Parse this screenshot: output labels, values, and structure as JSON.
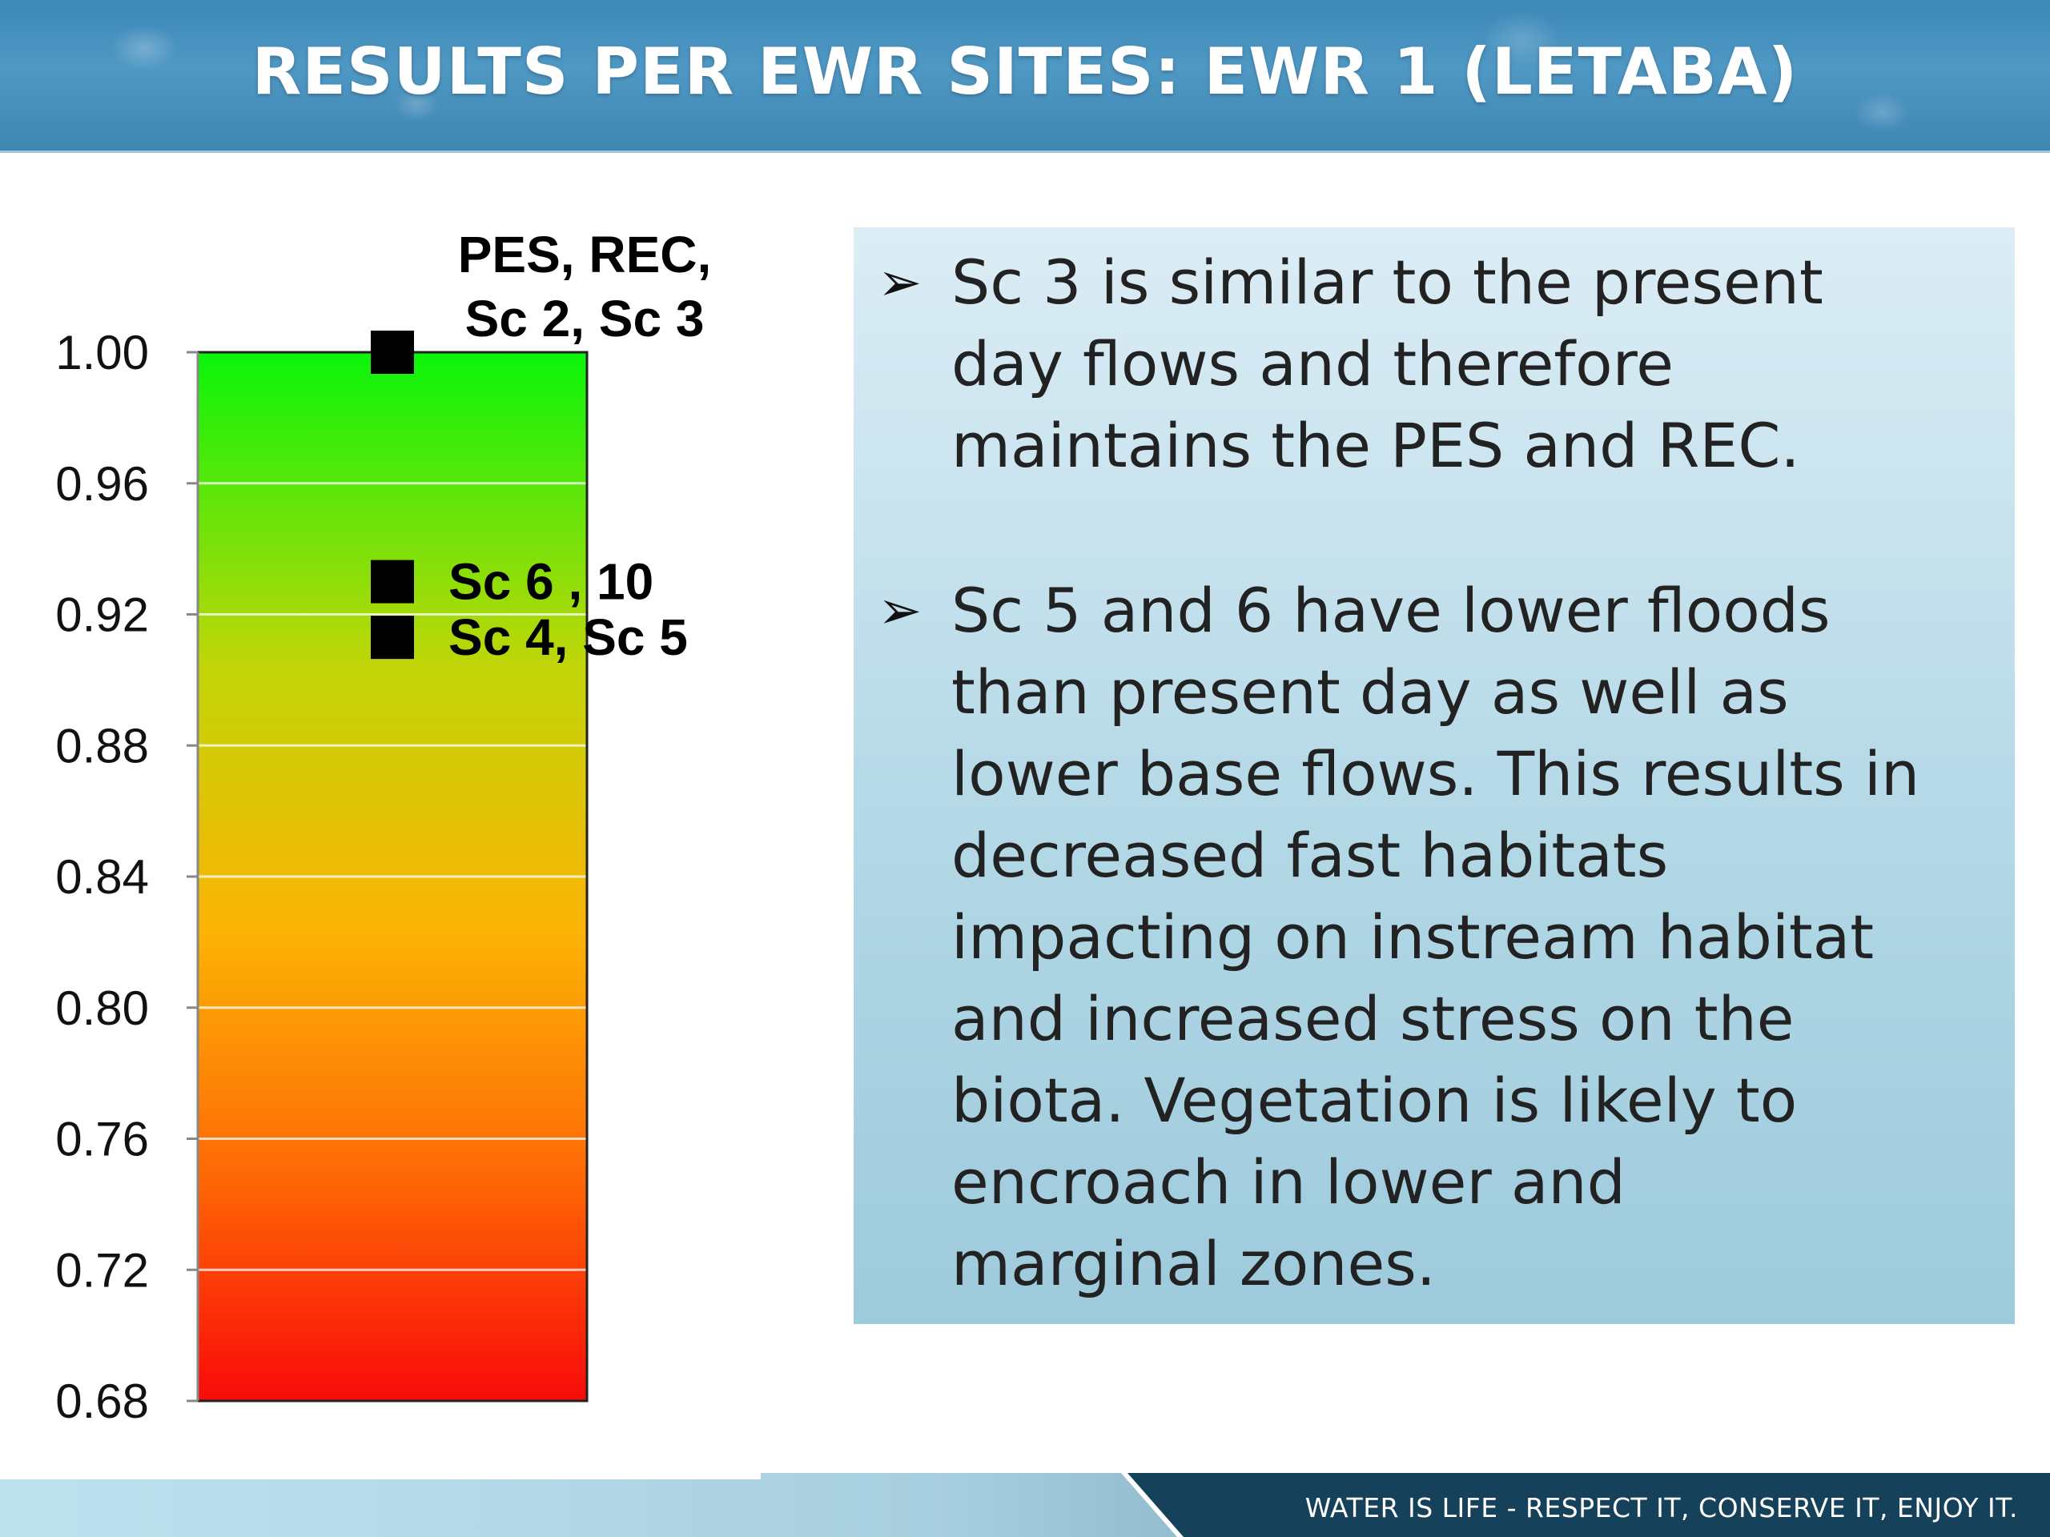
{
  "header": {
    "title": "RESULTS PER EWR SITES: EWR 1 (LETABA)"
  },
  "chart_data": {
    "type": "scatter",
    "title": "",
    "xlabel": "",
    "ylabel": "",
    "ylim": [
      0.68,
      1.0
    ],
    "y_ticks": [
      "1.00",
      "0.96",
      "0.92",
      "0.88",
      "0.84",
      "0.80",
      "0.76",
      "0.72",
      "0.68"
    ],
    "y_tick_values": [
      1.0,
      0.96,
      0.92,
      0.88,
      0.84,
      0.8,
      0.76,
      0.72,
      0.68
    ],
    "background": "gradient green (top) to yellow to orange to red (bottom)",
    "gradient_colors": [
      "#0af50a",
      "#c2d508",
      "#fbb404",
      "#ff6a06",
      "#f80a0a"
    ],
    "grid": true,
    "points": [
      {
        "y": 1.0,
        "label_lines": [
          "PES, REC,",
          "Sc 2, Sc 3"
        ]
      },
      {
        "y": 0.93,
        "label_lines": [
          "Sc 6 , 10"
        ]
      },
      {
        "y": 0.913,
        "label_lines": [
          "Sc 4, Sc 5"
        ]
      }
    ]
  },
  "bullets": [
    {
      "mark": "➢",
      "text": "Sc 3 is similar to the present\nday flows and therefore\nmaintains the PES and REC."
    },
    {
      "mark": "➢",
      "text": "Sc 5 and 6 have lower floods\nthan present day as well as\nlower base flows.  This results in\ndecreased fast habitats\nimpacting on instream habitat\nand increased stress on the\nbiota.  Vegetation is likely to\nencroach in lower and\nmarginal zones."
    }
  ],
  "footer": {
    "tagline": "WATER IS LIFE - RESPECT IT, CONSERVE IT, ENJOY IT."
  }
}
